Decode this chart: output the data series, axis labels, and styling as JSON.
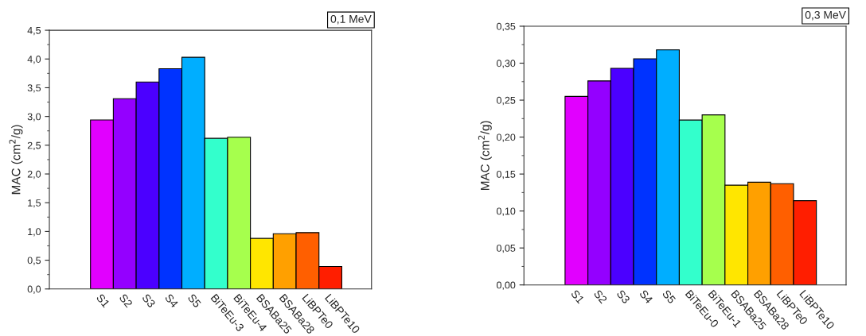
{
  "chart_data": [
    {
      "type": "bar",
      "ylabel": "MAC (cm$^{2}$/g)",
      "annotations": [
        "0,1 MeV"
      ],
      "categories": [
        "S1",
        "S2",
        "S3",
        "S4",
        "S5",
        "BiTeEu-3",
        "BiTeEu-4",
        "BSABa25",
        "BSABa28",
        "LiBPTe0",
        "LiBPTe10"
      ],
      "values": [
        2.94,
        3.31,
        3.6,
        3.83,
        4.03,
        2.62,
        2.64,
        0.88,
        0.96,
        0.98,
        0.39
      ],
      "colors": [
        "#e100ff",
        "#9400ff",
        "#4b00ff",
        "#0033ff",
        "#00aeff",
        "#33ffcc",
        "#a6ff4d",
        "#ffe600",
        "#ffa000",
        "#ff5f00",
        "#ff1e00"
      ],
      "ylim": [
        0,
        4.5
      ],
      "yticks": [
        {
          "value": 0,
          "label": "0,0"
        },
        {
          "value": 0.5,
          "label": "0,5"
        },
        {
          "value": 1,
          "label": "1,0"
        },
        {
          "value": 1.5,
          "label": "1,5"
        },
        {
          "value": 2,
          "label": "2,0"
        },
        {
          "value": 2.5,
          "label": "2,5"
        },
        {
          "value": 3,
          "label": "3,0"
        },
        {
          "value": 3.5,
          "label": "3,5"
        },
        {
          "value": 4,
          "label": "4,0"
        },
        {
          "value": 4.5,
          "label": "4,5"
        }
      ],
      "grid": false,
      "legend": false
    },
    {
      "type": "bar",
      "ylabel": "MAC (cm$^{2}$/g)",
      "annotations": [
        "0,3 MeV"
      ],
      "categories": [
        "S1",
        "S2",
        "S3",
        "S4",
        "S5",
        "BiTeEu-0",
        "BiTeEu-1",
        "BSABa25",
        "BSABa28",
        "LiBPTe0",
        "LiBPTe10"
      ],
      "values": [
        0.255,
        0.276,
        0.293,
        0.306,
        0.318,
        0.223,
        0.23,
        0.135,
        0.139,
        0.137,
        0.114
      ],
      "colors": [
        "#e100ff",
        "#9400ff",
        "#4b00ff",
        "#0033ff",
        "#00aeff",
        "#33ffcc",
        "#a6ff4d",
        "#ffe600",
        "#ffa000",
        "#ff5f00",
        "#ff1e00"
      ],
      "ylim": [
        0,
        0.35
      ],
      "yticks": [
        {
          "value": 0,
          "label": "0,00"
        },
        {
          "value": 0.05,
          "label": "0,05"
        },
        {
          "value": 0.1,
          "label": "0,10"
        },
        {
          "value": 0.15,
          "label": "0,15"
        },
        {
          "value": 0.2,
          "label": "0,20"
        },
        {
          "value": 0.25,
          "label": "0,25"
        },
        {
          "value": 0.3,
          "label": "0,30"
        },
        {
          "value": 0.35,
          "label": "0,35"
        }
      ],
      "grid": false,
      "legend": false
    }
  ]
}
